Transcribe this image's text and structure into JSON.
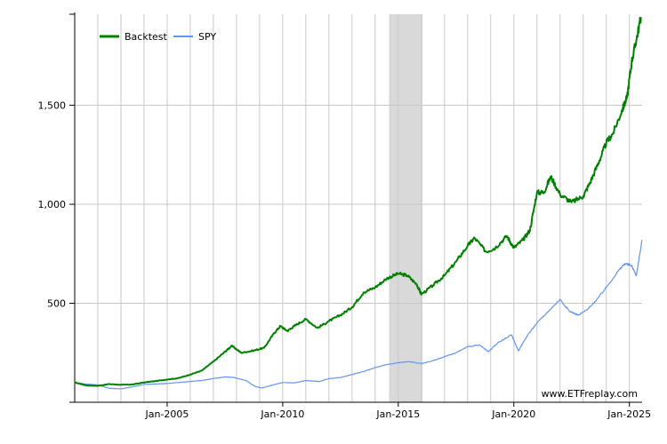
{
  "chart_data": {
    "type": "line",
    "title": "",
    "xlabel": "",
    "ylabel": "",
    "xlim": [
      2001.0,
      2025.55
    ],
    "ylim": [
      0,
      1960
    ],
    "x_ticks": [
      {
        "value": 2005,
        "label": "Jan-2005"
      },
      {
        "value": 2010,
        "label": "Jan-2010"
      },
      {
        "value": 2015,
        "label": "Jan-2015"
      },
      {
        "value": 2020,
        "label": "Jan-2020"
      },
      {
        "value": 2025,
        "label": "Jan-2025"
      }
    ],
    "y_ticks": [
      {
        "value": 500,
        "label": "500"
      },
      {
        "value": 1000,
        "label": "1,000"
      },
      {
        "value": 1500,
        "label": "1,500"
      }
    ],
    "shaded_regions": [
      {
        "x_start": 2014.6,
        "x_end": 2016.05,
        "color": "#d9d9d9"
      }
    ],
    "grid": true,
    "legend_position": "top-left",
    "series": [
      {
        "name": "Backtest",
        "color": "#008000",
        "points": [
          [
            2001.0,
            100
          ],
          [
            2001.5,
            85
          ],
          [
            2002.0,
            83
          ],
          [
            2002.5,
            92
          ],
          [
            2003.0,
            88
          ],
          [
            2003.5,
            90
          ],
          [
            2004.0,
            100
          ],
          [
            2004.5,
            107
          ],
          [
            2005.0,
            115
          ],
          [
            2005.5,
            122
          ],
          [
            2006.0,
            140
          ],
          [
            2006.5,
            160
          ],
          [
            2007.0,
            205
          ],
          [
            2007.5,
            255
          ],
          [
            2007.8,
            285
          ],
          [
            2008.2,
            250
          ],
          [
            2008.7,
            260
          ],
          [
            2009.2,
            275
          ],
          [
            2009.6,
            345
          ],
          [
            2009.9,
            385
          ],
          [
            2010.2,
            360
          ],
          [
            2010.5,
            385
          ],
          [
            2011.0,
            420
          ],
          [
            2011.5,
            375
          ],
          [
            2012.0,
            410
          ],
          [
            2012.5,
            440
          ],
          [
            2013.0,
            480
          ],
          [
            2013.5,
            555
          ],
          [
            2014.0,
            580
          ],
          [
            2014.5,
            625
          ],
          [
            2015.0,
            650
          ],
          [
            2015.4,
            640
          ],
          [
            2015.8,
            595
          ],
          [
            2016.0,
            545
          ],
          [
            2016.5,
            590
          ],
          [
            2017.0,
            640
          ],
          [
            2017.5,
            710
          ],
          [
            2018.0,
            790
          ],
          [
            2018.3,
            830
          ],
          [
            2018.8,
            760
          ],
          [
            2019.2,
            780
          ],
          [
            2019.7,
            840
          ],
          [
            2020.0,
            780
          ],
          [
            2020.4,
            820
          ],
          [
            2020.7,
            870
          ],
          [
            2021.0,
            1060
          ],
          [
            2021.3,
            1060
          ],
          [
            2021.6,
            1140
          ],
          [
            2022.0,
            1050
          ],
          [
            2022.5,
            1010
          ],
          [
            2023.0,
            1040
          ],
          [
            2023.3,
            1110
          ],
          [
            2023.7,
            1220
          ],
          [
            2024.0,
            1310
          ],
          [
            2024.3,
            1360
          ],
          [
            2024.7,
            1480
          ],
          [
            2024.9,
            1540
          ],
          [
            2025.1,
            1720
          ],
          [
            2025.3,
            1830
          ],
          [
            2025.5,
            1945
          ]
        ]
      },
      {
        "name": "SPY",
        "color": "#6495ed",
        "points": [
          [
            2001.0,
            100
          ],
          [
            2001.5,
            92
          ],
          [
            2002.0,
            88
          ],
          [
            2002.5,
            70
          ],
          [
            2003.0,
            68
          ],
          [
            2003.5,
            78
          ],
          [
            2004.0,
            90
          ],
          [
            2004.5,
            92
          ],
          [
            2005.0,
            95
          ],
          [
            2005.5,
            100
          ],
          [
            2006.0,
            105
          ],
          [
            2006.5,
            110
          ],
          [
            2007.0,
            120
          ],
          [
            2007.5,
            128
          ],
          [
            2007.9,
            125
          ],
          [
            2008.4,
            110
          ],
          [
            2008.8,
            80
          ],
          [
            2009.1,
            72
          ],
          [
            2009.5,
            85
          ],
          [
            2010.0,
            100
          ],
          [
            2010.5,
            98
          ],
          [
            2011.0,
            110
          ],
          [
            2011.6,
            105
          ],
          [
            2012.0,
            120
          ],
          [
            2012.5,
            125
          ],
          [
            2013.0,
            140
          ],
          [
            2013.5,
            155
          ],
          [
            2014.0,
            175
          ],
          [
            2014.5,
            190
          ],
          [
            2015.0,
            200
          ],
          [
            2015.5,
            205
          ],
          [
            2016.0,
            195
          ],
          [
            2016.5,
            210
          ],
          [
            2017.0,
            230
          ],
          [
            2017.5,
            250
          ],
          [
            2018.0,
            280
          ],
          [
            2018.5,
            290
          ],
          [
            2018.9,
            255
          ],
          [
            2019.3,
            300
          ],
          [
            2019.9,
            340
          ],
          [
            2020.2,
            260
          ],
          [
            2020.6,
            340
          ],
          [
            2021.0,
            400
          ],
          [
            2021.5,
            460
          ],
          [
            2022.0,
            520
          ],
          [
            2022.4,
            460
          ],
          [
            2022.8,
            440
          ],
          [
            2023.2,
            470
          ],
          [
            2023.6,
            520
          ],
          [
            2024.0,
            580
          ],
          [
            2024.5,
            660
          ],
          [
            2024.8,
            700
          ],
          [
            2025.1,
            690
          ],
          [
            2025.3,
            640
          ],
          [
            2025.55,
            820
          ]
        ]
      }
    ],
    "annotations": [
      {
        "text": "www.ETFreplay.com",
        "position": "bottom-right"
      }
    ]
  }
}
